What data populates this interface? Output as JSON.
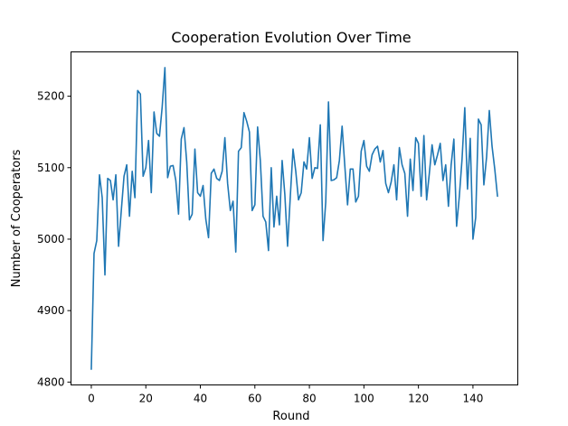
{
  "chart_data": {
    "type": "line",
    "title": "Cooperation Evolution Over Time",
    "xlabel": "Round",
    "ylabel": "Number of Cooperators",
    "xlim": [
      -7.45,
      156.45
    ],
    "ylim": [
      4796,
      5262
    ],
    "xticks": [
      0,
      20,
      40,
      60,
      80,
      100,
      120,
      140
    ],
    "yticks": [
      4800,
      4900,
      5000,
      5100,
      5200
    ],
    "grid": false,
    "series": [
      {
        "color": "#1f77b4",
        "x": [
          0,
          1,
          2,
          3,
          4,
          5,
          6,
          7,
          8,
          9,
          10,
          11,
          12,
          13,
          14,
          15,
          16,
          17,
          18,
          19,
          20,
          21,
          22,
          23,
          24,
          25,
          26,
          27,
          28,
          29,
          30,
          31,
          32,
          33,
          34,
          35,
          36,
          37,
          38,
          39,
          40,
          41,
          42,
          43,
          44,
          45,
          46,
          47,
          48,
          49,
          50,
          51,
          52,
          53,
          54,
          55,
          56,
          57,
          58,
          59,
          60,
          61,
          62,
          63,
          64,
          65,
          66,
          67,
          68,
          69,
          70,
          71,
          72,
          73,
          74,
          75,
          76,
          77,
          78,
          79,
          80,
          81,
          82,
          83,
          84,
          85,
          86,
          87,
          88,
          89,
          90,
          91,
          92,
          93,
          94,
          95,
          96,
          97,
          98,
          99,
          100,
          101,
          102,
          103,
          104,
          105,
          106,
          107,
          108,
          109,
          110,
          111,
          112,
          113,
          114,
          115,
          116,
          117,
          118,
          119,
          120,
          121,
          122,
          123,
          124,
          125,
          126,
          127,
          128,
          129,
          130,
          131,
          132,
          133,
          134,
          135,
          136,
          137,
          138,
          139,
          140,
          141,
          142,
          143,
          144,
          145,
          146,
          147,
          148,
          149
        ],
        "values": [
          4818,
          4980,
          4998,
          5090,
          5058,
          4950,
          5085,
          5082,
          5055,
          5090,
          4990,
          5040,
          5088,
          5104,
          5032,
          5095,
          5058,
          5208,
          5203,
          5088,
          5100,
          5138,
          5065,
          5178,
          5148,
          5144,
          5185,
          5240,
          5086,
          5102,
          5103,
          5082,
          5035,
          5140,
          5156,
          5108,
          5027,
          5035,
          5126,
          5065,
          5060,
          5075,
          5028,
          5002,
          5092,
          5098,
          5085,
          5082,
          5095,
          5142,
          5078,
          5040,
          5053,
          4982,
          5123,
          5128,
          5177,
          5165,
          5150,
          5040,
          5048,
          5157,
          5110,
          5032,
          5024,
          4984,
          5100,
          5017,
          5060,
          5020,
          5110,
          5062,
          4990,
          5060,
          5126,
          5095,
          5055,
          5065,
          5108,
          5098,
          5142,
          5085,
          5100,
          5099,
          5160,
          4998,
          5052,
          5192,
          5082,
          5083,
          5086,
          5110,
          5158,
          5102,
          5048,
          5098,
          5098,
          5052,
          5060,
          5123,
          5138,
          5102,
          5095,
          5118,
          5126,
          5130,
          5108,
          5124,
          5078,
          5065,
          5080,
          5104,
          5055,
          5128,
          5104,
          5092,
          5032,
          5112,
          5068,
          5142,
          5134,
          5060,
          5145,
          5055,
          5092,
          5132,
          5104,
          5118,
          5134,
          5082,
          5104,
          5046,
          5104,
          5140,
          5018,
          5060,
          5112,
          5184,
          5070,
          5141,
          5000,
          5030,
          5168,
          5160,
          5076,
          5115,
          5180,
          5130,
          5098,
          5060
        ]
      }
    ]
  }
}
